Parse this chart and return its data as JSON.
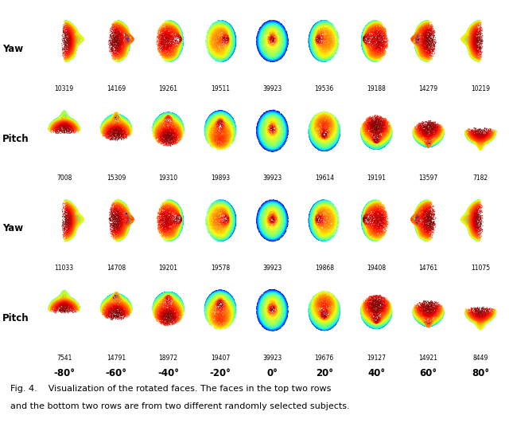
{
  "caption_line1": "Fig. 4.    Visualization of the rotated faces. The faces in the top two rows",
  "caption_line2": "and the bottom two rows are from two different randomly selected subjects.",
  "angles": [
    "-80°",
    "-60°",
    "-40°",
    "-20°",
    "0°",
    "20°",
    "40°",
    "60°",
    "80°"
  ],
  "row_labels": [
    "Yaw",
    "Pitch",
    "Yaw",
    "Pitch"
  ],
  "row1_counts": [
    "10319",
    "14169",
    "19261",
    "19511",
    "39923",
    "19536",
    "19188",
    "14279",
    "10219"
  ],
  "row2_counts": [
    "7008",
    "15309",
    "19310",
    "19893",
    "39923",
    "19614",
    "19191",
    "13597",
    "7182"
  ],
  "row3_counts": [
    "11033",
    "14708",
    "19201",
    "19578",
    "39923",
    "19868",
    "19408",
    "14761",
    "11075"
  ],
  "row4_counts": [
    "7541",
    "14791",
    "18972",
    "19407",
    "39923",
    "19676",
    "19127",
    "14921",
    "8449"
  ],
  "angles_deg": [
    -80,
    -60,
    -40,
    -20,
    0,
    20,
    40,
    60,
    80
  ]
}
